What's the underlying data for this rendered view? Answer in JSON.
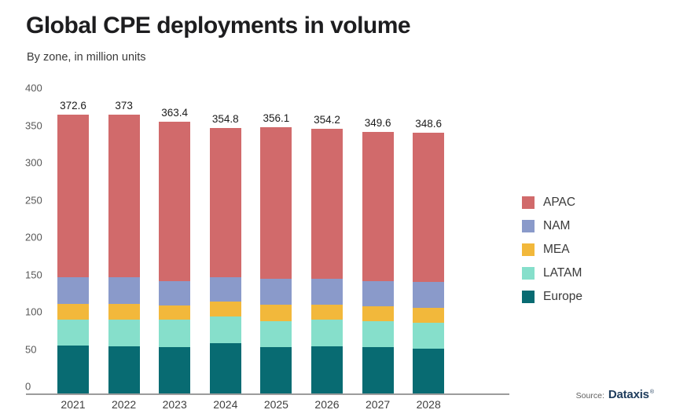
{
  "header": {
    "title": "Global CPE deployments in volume",
    "subtitle": "By zone, in million units"
  },
  "source": {
    "prefix": "Source:",
    "name": "Dataxis",
    "mark": "®"
  },
  "chart_data": {
    "type": "bar",
    "stacked": true,
    "title": "Global CPE deployments in volume",
    "subtitle": "By zone, in million units",
    "categories": [
      "2021",
      "2022",
      "2023",
      "2024",
      "2025",
      "2026",
      "2027",
      "2028"
    ],
    "series": [
      {
        "name": "Europe",
        "color": "#086B72",
        "values": [
          64,
          63,
          62,
          67,
          62,
          63,
          62,
          60
        ]
      },
      {
        "name": "LATAM",
        "color": "#86DFCB",
        "values": [
          35,
          36,
          37,
          36,
          35,
          36,
          35,
          35
        ]
      },
      {
        "name": "MEA",
        "color": "#F2B83B",
        "values": [
          21,
          21,
          19,
          20,
          22,
          20,
          20,
          20
        ]
      },
      {
        "name": "NAM",
        "color": "#8A9ACA",
        "values": [
          35,
          35,
          32,
          32,
          34,
          34,
          33,
          34
        ]
      },
      {
        "name": "APAC",
        "color": "#D16A6B",
        "values": [
          217.6,
          218.0,
          213.4,
          199.8,
          203.1,
          201.2,
          199.6,
          199.6
        ]
      }
    ],
    "totals": [
      372.6,
      373,
      363.4,
      354.8,
      356.1,
      354.2,
      349.6,
      348.6
    ],
    "total_labels": [
      "372.6",
      "373",
      "363.4",
      "354.8",
      "356.1",
      "354.2",
      "349.6",
      "348.6"
    ],
    "y_ticks": [
      0,
      50,
      100,
      150,
      200,
      250,
      300,
      350,
      400
    ],
    "ylim": [
      0,
      400
    ],
    "grid": false,
    "legend_position": "right",
    "legend_order": [
      "APAC",
      "NAM",
      "MEA",
      "LATAM",
      "Europe"
    ]
  }
}
